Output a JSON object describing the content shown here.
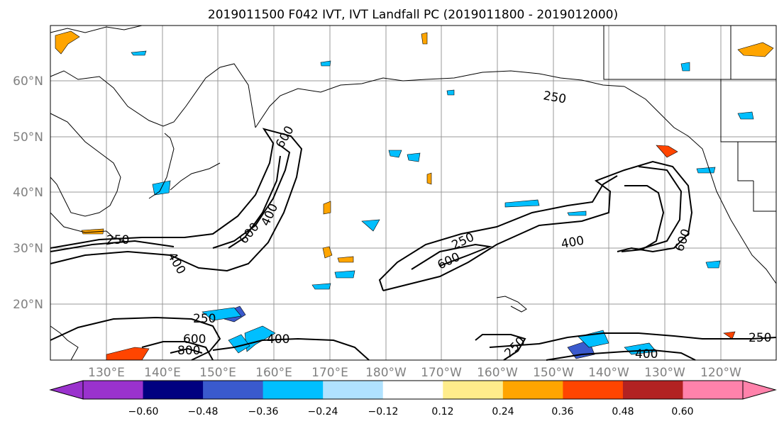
{
  "title": "2019011500 F042 IVT, IVT Landfall PC (2019011800 - 2019012000)",
  "lat_labels": [
    "60°N",
    "50°N",
    "40°N",
    "30°N",
    "20°N"
  ],
  "lon_labels": [
    "130°E",
    "140°E",
    "150°E",
    "160°E",
    "170°E",
    "180°W",
    "170°W",
    "160°W",
    "150°W",
    "140°W",
    "130°W",
    "120°W"
  ],
  "contour_labels": [
    "250",
    "400",
    "600",
    "600",
    "400",
    "250",
    "250",
    "600",
    "400",
    "600",
    "250",
    "400",
    "600",
    "800",
    "250",
    "400",
    "250"
  ],
  "colorbar": {
    "ticks": [
      "−0.60",
      "−0.48",
      "−0.36",
      "−0.24",
      "−0.12",
      "0.12",
      "0.24",
      "0.36",
      "0.48",
      "0.60"
    ],
    "colors": [
      "#9a32cd",
      "#000080",
      "#3a5acd",
      "#00bfff",
      "#b0e2ff",
      "#ffffff",
      "#ffec8b",
      "#ffa500",
      "#ff4500",
      "#b22222",
      "#ff82ab"
    ]
  },
  "colors": {
    "land_line": "#000000",
    "grid": "#999999",
    "axis_label": "#808080"
  }
}
